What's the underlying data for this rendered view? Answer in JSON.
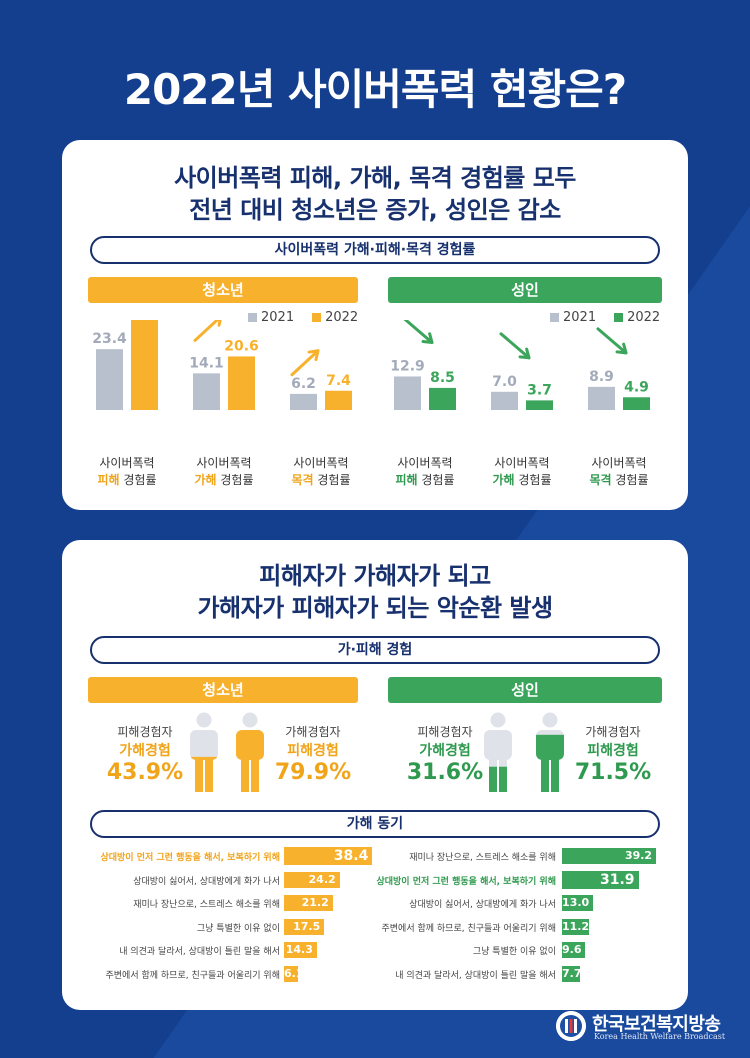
{
  "title": "2022년 사이버폭력 현황은?",
  "section1": {
    "heading_line1": "사이버폭력 피해, 가해, 목격 경험률 모두",
    "heading_line2": "전년 대비 청소년은 증가, 성인은 감소",
    "pill": "사이버폭력 가해·피해·목격 경험률",
    "youth_label": "청소년",
    "adult_label": "성인",
    "legend_2021": "2021",
    "legend_2022": "2022"
  },
  "chart_data": [
    {
      "type": "bar",
      "group": "청소년",
      "categories": [
        "사이버폭력 피해 경험률",
        "사이버폭력 가해 경험률",
        "사이버폭력 목격 경험률"
      ],
      "cat_line1": [
        "사이버폭력",
        "사이버폭력",
        "사이버폭력"
      ],
      "cat_key": [
        "피해",
        "가해",
        "목격"
      ],
      "cat_tail": [
        "경험률",
        "경험률",
        "경험률"
      ],
      "series": [
        {
          "name": "2021",
          "values": [
            23.4,
            14.1,
            6.2
          ],
          "color": "#b8bfcd"
        },
        {
          "name": "2022",
          "values": [
            37.5,
            20.6,
            7.4
          ],
          "color": "#f8b12c"
        }
      ],
      "trend": "up"
    },
    {
      "type": "bar",
      "group": "성인",
      "categories": [
        "사이버폭력 피해 경험률",
        "사이버폭력 가해 경험률",
        "사이버폭력 목격 경험률"
      ],
      "cat_line1": [
        "사이버폭력",
        "사이버폭력",
        "사이버폭력"
      ],
      "cat_key": [
        "피해",
        "가해",
        "목격"
      ],
      "cat_tail": [
        "경험률",
        "경험률",
        "경험률"
      ],
      "series": [
        {
          "name": "2021",
          "values": [
            12.9,
            7.0,
            8.9
          ],
          "color": "#b8bfcd"
        },
        {
          "name": "2022",
          "values": [
            8.5,
            3.7,
            4.9
          ],
          "color": "#3ba65b"
        }
      ],
      "trend": "down"
    },
    {
      "type": "bar",
      "group": "청소년",
      "title": "가해 동기",
      "categories": [
        "상대방이 먼저 그런 행동을 해서, 보복하기 위해",
        "상대방이 싫어서, 상대방에게 화가 나서",
        "재미나 장난으로, 스트레스 해소를 위해",
        "그냥 특별한 이유 없이",
        "내 의견과 달라서, 상대방이 틀린 말을 해서",
        "주변에서 함께 하므로, 친구들과 어울리기 위해"
      ],
      "values": [
        38.4,
        24.2,
        21.2,
        17.5,
        14.3,
        6.1
      ],
      "color": "#f8b12c"
    },
    {
      "type": "bar",
      "group": "성인",
      "title": "가해 동기",
      "categories": [
        "재미나 장난으로, 스트레스 해소를 위해",
        "상대방이 먼저 그런 행동을 해서, 보복하기 위해",
        "상대방이 싫어서, 상대방에게 화가 나서",
        "주변에서 함께 하므로, 친구들과 어울리기 위해",
        "그냥 특별한 이유 없이",
        "내 의견과 달라서, 상대방이 틀린 말을 해서"
      ],
      "values": [
        39.2,
        31.9,
        13.0,
        11.2,
        9.6,
        7.7
      ],
      "color": "#3ba65b"
    }
  ],
  "section2": {
    "heading_line1": "피해자가 가해자가 되고",
    "heading_line2": "가해자가 피해자가 되는 악순환 발생",
    "pill": "가·피해 경험",
    "youth_label": "청소년",
    "adult_label": "성인",
    "youth": {
      "left_top": "피해경험자",
      "left_sub": "가해경험",
      "left_val": "43.9%",
      "left_fill": 0.439,
      "right_top": "가해경험자",
      "right_sub": "피해경험",
      "right_val": "79.9%",
      "right_fill": 0.799
    },
    "adult": {
      "left_top": "피해경험자",
      "left_sub": "가해경험",
      "left_val": "31.6%",
      "left_fill": 0.316,
      "right_top": "가해경험자",
      "right_sub": "피해경험",
      "right_val": "71.5%",
      "right_fill": 0.715
    },
    "motive_pill": "가해 동기"
  },
  "logo": {
    "name": "한국보건복지방송",
    "english": "Korea Health Welfare Broadcast"
  },
  "colors": {
    "navy": "#143f8f",
    "orange": "#f8b12c",
    "green": "#3ba65b",
    "gray": "#b8bfcd"
  }
}
